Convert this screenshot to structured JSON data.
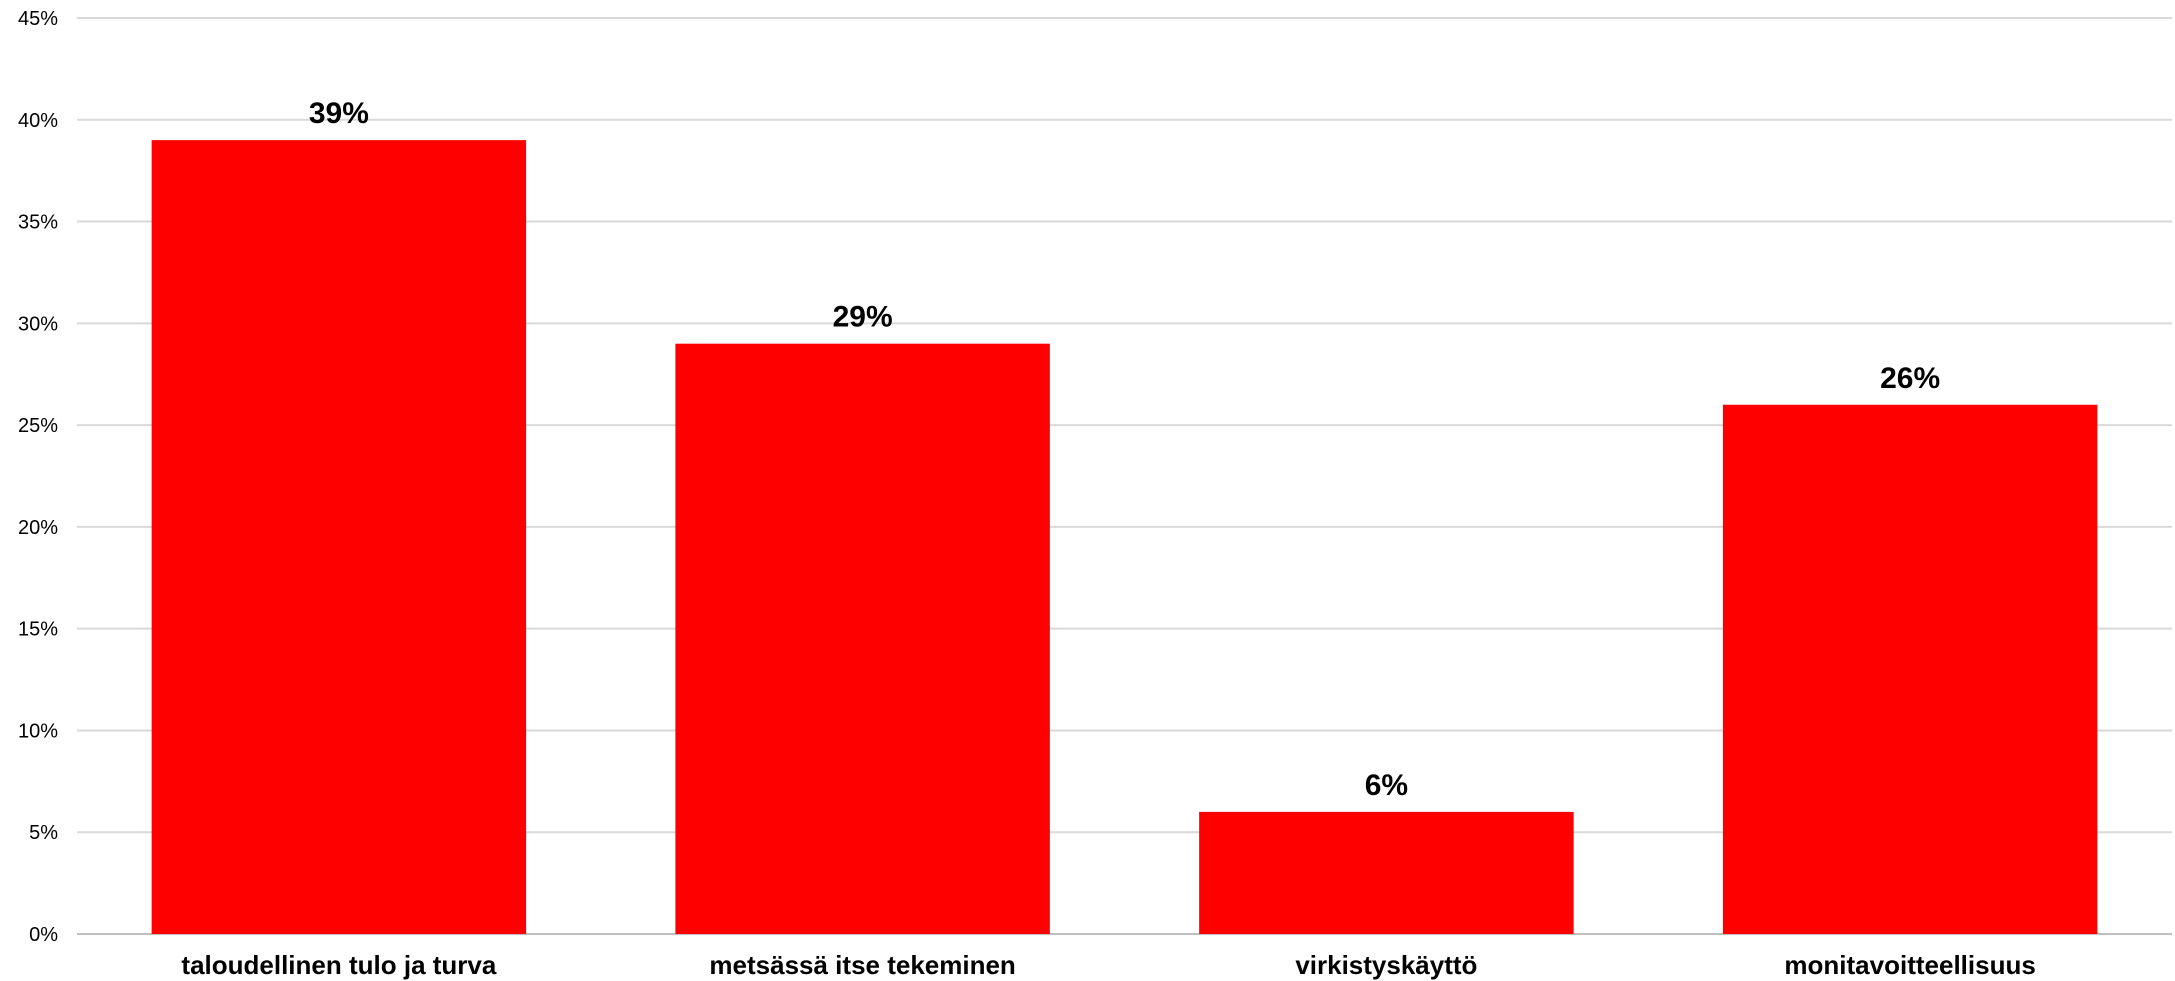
{
  "chart_data": {
    "type": "bar",
    "categories": [
      "taloudellinen tulo ja turva",
      "metsässä itse tekeminen",
      "virkistyskäyttö",
      "monitavoitteellisuus"
    ],
    "values": [
      39,
      29,
      6,
      26
    ],
    "data_labels": [
      "39%",
      "29%",
      "6%",
      "26%"
    ],
    "y_ticks": [
      "0%",
      "5%",
      "10%",
      "15%",
      "20%",
      "25%",
      "30%",
      "35%",
      "40%",
      "45%"
    ],
    "ylim": [
      0,
      45
    ],
    "y_step": 5,
    "grid": true,
    "legend": "none",
    "bar_color": "#ff0000"
  }
}
